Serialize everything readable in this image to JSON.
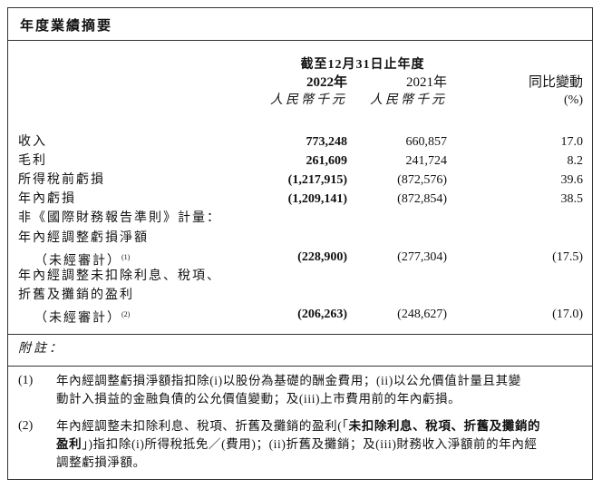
{
  "header": {
    "title": "年度業績摘要"
  },
  "table": {
    "period": "截至12月31日止年度",
    "columns": [
      {
        "year": "2022年",
        "unit": "人民幣千元"
      },
      {
        "year": "2021年",
        "unit": "人民幣千元"
      },
      {
        "year": "同比變動",
        "unit": "(%)"
      }
    ],
    "rows": [
      {
        "label": "收入",
        "values": [
          "773,248",
          "660,857",
          "17.0"
        ]
      },
      {
        "label": "毛利",
        "values": [
          "261,609",
          "241,724",
          "8.2"
        ]
      },
      {
        "label": "所得稅前虧損",
        "values": [
          "(1,217,915)",
          "(872,576)",
          "39.6"
        ]
      },
      {
        "label": "年內虧損",
        "values": [
          "(1,209,141)",
          "(872,854)",
          "38.5"
        ]
      },
      {
        "label": "非《國際財務報告準則》計量："
      },
      {
        "label": "年內經調整虧損淨額"
      },
      {
        "label": "（未經審計）",
        "note": "(1)",
        "values": [
          "(228,900)",
          "(277,304)",
          "(17.5)"
        ]
      },
      {
        "label": "年內經調整未扣除利息、稅項、"
      },
      {
        "label": "折舊及攤銷的盈利"
      },
      {
        "label": "（未經審計）",
        "note": "(2)",
        "values": [
          "(206,263)",
          "(248,627)",
          "(17.0)"
        ]
      }
    ]
  },
  "notes": {
    "title": "附註：",
    "items": [
      {
        "number": "(1)",
        "lines": [
          [
            {
              "text": "年內經調整虧損淨額指扣除(i)以股份為基礎的酬金費用；(ii)以公允價值計量且其變",
              "bold": false
            }
          ],
          [
            {
              "text": "動計入損益的金融負債的公允價值變動；及(iii)上市費用前的年內虧損。",
              "bold": false
            }
          ]
        ]
      },
      {
        "number": "(2)",
        "lines": [
          [
            {
              "text": "年內經調整未扣除利息、稅項、折舊及攤銷的盈利(「",
              "bold": false
            },
            {
              "text": "未扣除利息、稅項、折舊及攤銷的",
              "bold": true
            }
          ],
          [
            {
              "text": "盈利",
              "bold": true
            },
            {
              "text": "」)指扣除(i)所得稅抵免／(費用)；(ii)折舊及攤銷；及(iii)財務收入淨額前的年內經",
              "bold": false
            }
          ],
          [
            {
              "text": "調整虧損淨額。",
              "bold": false
            }
          ]
        ]
      }
    ]
  }
}
